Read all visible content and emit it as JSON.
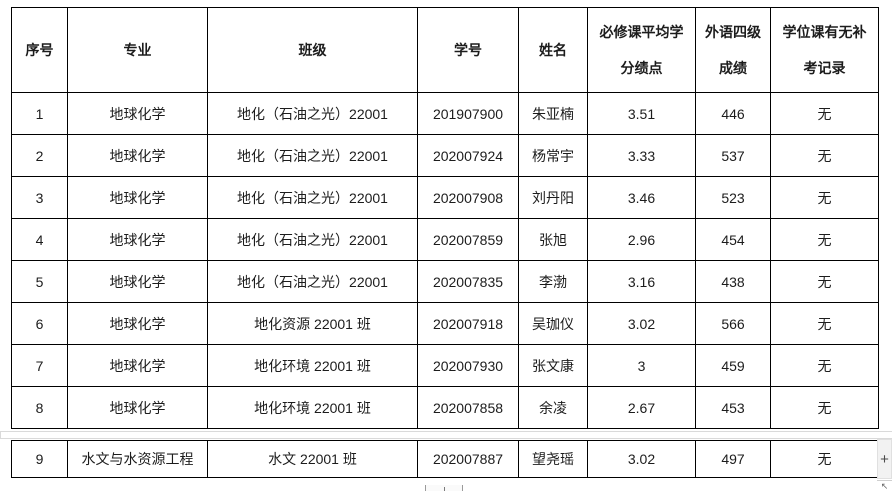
{
  "table": {
    "headers": [
      "序号",
      "专业",
      "班级",
      "学号",
      "姓名",
      "必修课平均学\n分绩点",
      "外语四级\n成绩",
      "学位课有无补\n考记录"
    ],
    "rows": [
      [
        "1",
        "地球化学",
        "地化（石油之光）22001",
        "201907900",
        "朱亚楠",
        "3.51",
        "446",
        "无"
      ],
      [
        "2",
        "地球化学",
        "地化（石油之光）22001",
        "202007924",
        "杨常宇",
        "3.33",
        "537",
        "无"
      ],
      [
        "3",
        "地球化学",
        "地化（石油之光）22001",
        "202007908",
        "刘丹阳",
        "3.46",
        "523",
        "无"
      ],
      [
        "4",
        "地球化学",
        "地化（石油之光）22001",
        "202007859",
        "张旭",
        "2.96",
        "454",
        "无"
      ],
      [
        "5",
        "地球化学",
        "地化（石油之光）22001",
        "202007835",
        "李渤",
        "3.16",
        "438",
        "无"
      ],
      [
        "6",
        "地球化学",
        "地化资源 22001 班",
        "202007918",
        "吴珈仪",
        "3.02",
        "566",
        "无"
      ],
      [
        "7",
        "地球化学",
        "地化环境 22001 班",
        "202007930",
        "张文康",
        "3",
        "459",
        "无"
      ],
      [
        "8",
        "地球化学",
        "地化环境 22001 班",
        "202007858",
        "余凌",
        "2.67",
        "453",
        "无"
      ]
    ],
    "rows_page2": [
      [
        "9",
        "水文与水资源工程",
        "水文 22001 班",
        "202007887",
        "望尧瑶",
        "3.02",
        "497",
        "无"
      ]
    ]
  },
  "widgets": {
    "scroll_plus_label": "+",
    "resize_arrow_glyph": "↖"
  },
  "colors": {
    "table_border": "#000000",
    "page_break_line": "#dadada",
    "scroll_strip_bg": "#f2f2f2",
    "text": "#1c1c1c"
  }
}
